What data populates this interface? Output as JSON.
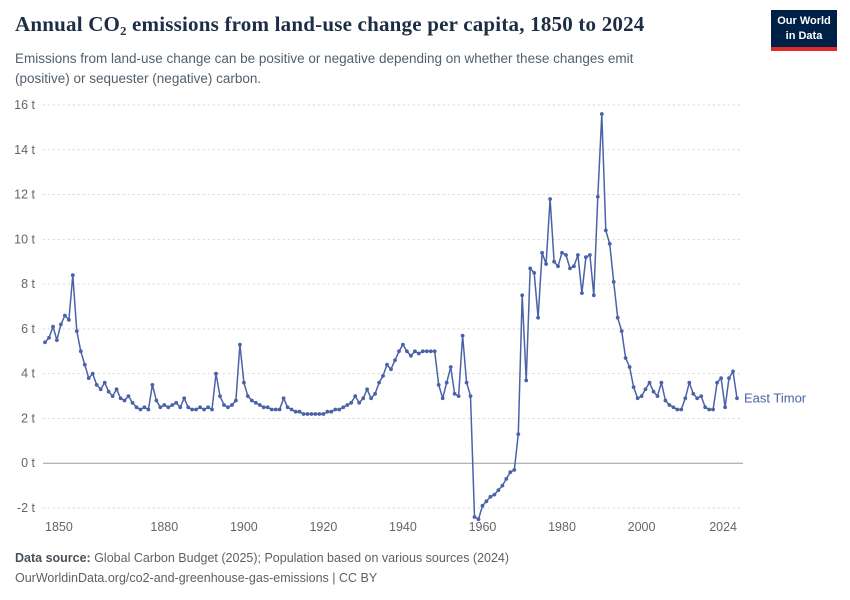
{
  "header": {
    "title": "Annual CO₂ emissions from land-use change per capita, 1850 to 2024",
    "subtitle": "Emissions from land-use change can be positive or negative depending on whether these changes emit (positive) or sequester (negative) carbon.",
    "logo_line1": "Our World",
    "logo_line2": "in Data"
  },
  "footer": {
    "source_label": "Data source:",
    "source_text": " Global Carbon Budget (2025); Population based on various sources (2024)",
    "link": "OurWorldinData.org/co2-and-greenhouse-gas-emissions",
    "license_suffix": " | CC BY"
  },
  "chart_data": {
    "type": "line",
    "title": "Annual CO₂ emissions from land-use change per capita, 1850 to 2024",
    "entity": "East Timor",
    "unit": "t",
    "line_color": "#4a62a8",
    "grid": "dotted-horizontal",
    "x_start": 1850,
    "x_end": 2024,
    "y_min": -2,
    "y_max": 16,
    "yticks": [
      -2,
      0,
      2,
      4,
      6,
      8,
      10,
      12,
      14,
      16
    ],
    "ytick_suffix": " t",
    "xticks": [
      1850,
      1880,
      1900,
      1920,
      1940,
      1960,
      1980,
      2000,
      2024
    ],
    "values": [
      5.4,
      5.6,
      6.1,
      5.5,
      6.2,
      6.6,
      6.4,
      8.4,
      5.9,
      5.0,
      4.4,
      3.8,
      4.0,
      3.5,
      3.3,
      3.6,
      3.2,
      3.0,
      3.3,
      2.9,
      2.8,
      3.0,
      2.7,
      2.5,
      2.4,
      2.5,
      2.4,
      3.5,
      2.8,
      2.5,
      2.6,
      2.5,
      2.6,
      2.7,
      2.5,
      2.9,
      2.5,
      2.4,
      2.4,
      2.5,
      2.4,
      2.5,
      2.4,
      4.0,
      3.0,
      2.6,
      2.5,
      2.6,
      2.8,
      5.3,
      3.6,
      3.0,
      2.8,
      2.7,
      2.6,
      2.5,
      2.5,
      2.4,
      2.4,
      2.4,
      2.9,
      2.5,
      2.4,
      2.3,
      2.3,
      2.2,
      2.2,
      2.2,
      2.2,
      2.2,
      2.2,
      2.3,
      2.3,
      2.4,
      2.4,
      2.5,
      2.6,
      2.7,
      3.0,
      2.7,
      2.9,
      3.3,
      2.9,
      3.1,
      3.6,
      3.9,
      4.4,
      4.2,
      4.6,
      5.0,
      5.3,
      5.0,
      4.8,
      5.0,
      4.9,
      5.0,
      5.0,
      5.0,
      5.0,
      3.5,
      2.9,
      3.6,
      4.3,
      3.1,
      3.0,
      5.7,
      3.6,
      3.0,
      -2.4,
      -2.5,
      -1.9,
      -1.7,
      -1.5,
      -1.4,
      -1.2,
      -1.0,
      -0.7,
      -0.4,
      -0.3,
      1.3,
      7.5,
      3.7,
      8.7,
      8.5,
      6.5,
      9.4,
      8.9,
      11.8,
      9.0,
      8.8,
      9.4,
      9.3,
      8.7,
      8.8,
      9.3,
      7.6,
      9.2,
      9.3,
      7.5,
      11.9,
      15.6,
      10.4,
      9.8,
      8.1,
      6.5,
      5.9,
      4.7,
      4.3,
      3.4,
      2.9,
      3.0,
      3.3,
      3.6,
      3.2,
      3.0,
      3.6,
      2.8,
      2.6,
      2.5,
      2.4,
      2.4,
      2.9,
      3.6,
      3.1,
      2.9,
      3.0,
      2.5,
      2.4,
      2.4,
      3.6,
      3.8,
      2.5,
      3.8,
      4.1,
      2.9
    ]
  }
}
